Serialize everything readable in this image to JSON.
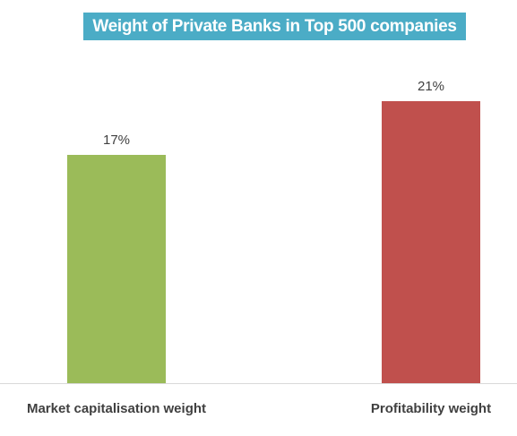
{
  "chart_data": {
    "type": "bar",
    "title": "Weight of Private Banks in Top 500 companies",
    "categories": [
      "Market capitalisation weight",
      "Profitability weight"
    ],
    "values": [
      17,
      21
    ],
    "data_labels": [
      "17%",
      "21%"
    ],
    "bar_colors": [
      "#9bbb59",
      "#c0504d"
    ],
    "title_background": "#4bacc6",
    "ylim": [
      0,
      26
    ],
    "grid": false,
    "legend": "none"
  }
}
